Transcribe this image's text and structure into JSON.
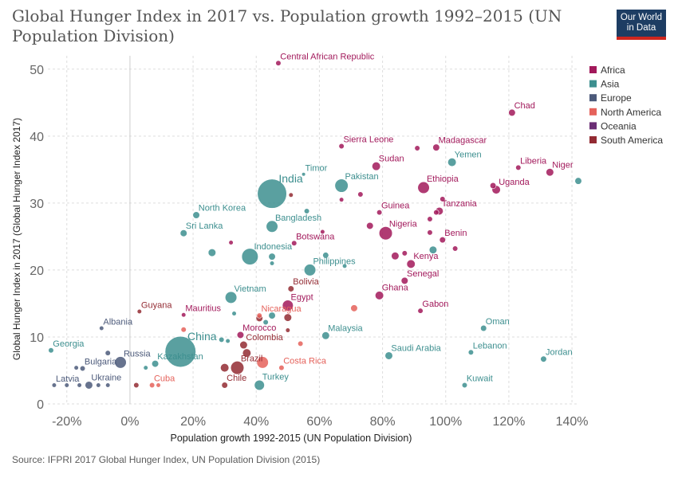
{
  "title": "Global Hunger Index in 2017 vs. Population growth 1992–2015 (UN Population Division)",
  "logo": {
    "line1": "Our World",
    "line2": "in Data"
  },
  "source": "Source: IFPRI 2017 Global Hunger Index, UN Population Division (2015)",
  "colors": {
    "Africa": "#a2195b",
    "Asia": "#3d8f8f",
    "Europe": "#4c5a7a",
    "North America": "#e5625b",
    "Oceania": "#6b2e75",
    "South America": "#932b33"
  },
  "chart_data": {
    "type": "scatter",
    "title": "Global Hunger Index in 2017 vs. Population growth 1992–2015 (UN Population Division)",
    "xlabel": "Population growth 1992-2015 (UN Population Division)",
    "ylabel": "Global Hunger Index in 2017 (Global Hunger Index 2017)",
    "xlim": [
      -0.26,
      1.42
    ],
    "ylim": [
      0,
      52
    ],
    "x_ticks": [
      {
        "value": -0.2,
        "label": "-20%"
      },
      {
        "value": 0,
        "label": "0%"
      },
      {
        "value": 0.2,
        "label": "20%"
      },
      {
        "value": 0.4,
        "label": "40%"
      },
      {
        "value": 0.6,
        "label": "60%"
      },
      {
        "value": 0.8,
        "label": "80%"
      },
      {
        "value": 1.0,
        "label": "100%"
      },
      {
        "value": 1.2,
        "label": "120%"
      },
      {
        "value": 1.4,
        "label": "140%"
      }
    ],
    "y_ticks": [
      {
        "value": 0,
        "label": "0"
      },
      {
        "value": 10,
        "label": "10"
      },
      {
        "value": 20,
        "label": "20"
      },
      {
        "value": 30,
        "label": "30"
      },
      {
        "value": 40,
        "label": "40"
      },
      {
        "value": 50,
        "label": "50"
      }
    ],
    "grid": true,
    "legend_position": "top-right",
    "legend": [
      "Africa",
      "Asia",
      "Europe",
      "North America",
      "Oceania",
      "South America"
    ],
    "points": [
      {
        "label": "Central African Republic",
        "region": "Africa",
        "x": 0.47,
        "y": 50.9,
        "size": 2
      },
      {
        "label": "Chad",
        "region": "Africa",
        "x": 1.21,
        "y": 43.5,
        "size": 3
      },
      {
        "label": "Sierra Leone",
        "region": "Africa",
        "x": 0.67,
        "y": 38.5,
        "size": 2
      },
      {
        "label": "Madagascar",
        "region": "Africa",
        "x": 0.97,
        "y": 38.3,
        "size": 3
      },
      {
        "label": "",
        "region": "Africa",
        "x": 0.91,
        "y": 38.2,
        "size": 2
      },
      {
        "label": "Sudan",
        "region": "Africa",
        "x": 0.78,
        "y": 35.5,
        "size": 4
      },
      {
        "label": "Liberia",
        "region": "Africa",
        "x": 1.23,
        "y": 35.3,
        "size": 2
      },
      {
        "label": "Niger",
        "region": "Africa",
        "x": 1.33,
        "y": 34.6,
        "size": 3.5
      },
      {
        "label": "Timor",
        "region": "Asia",
        "x": 0.55,
        "y": 34.3,
        "size": 1
      },
      {
        "label": "India",
        "region": "Asia",
        "x": 0.45,
        "y": 31.4,
        "size": 17
      },
      {
        "label": "Pakistan",
        "region": "Asia",
        "x": 0.67,
        "y": 32.6,
        "size": 7
      },
      {
        "label": "Yemen",
        "region": "Asia",
        "x": 1.02,
        "y": 36.1,
        "size": 4
      },
      {
        "label": "Ethiopia",
        "region": "Africa",
        "x": 0.93,
        "y": 32.3,
        "size": 6
      },
      {
        "label": "Uganda",
        "region": "Africa",
        "x": 1.16,
        "y": 32.0,
        "size": 4
      },
      {
        "label": "",
        "region": "Africa",
        "x": 1.15,
        "y": 32.6,
        "size": 2.5
      },
      {
        "label": "",
        "region": "Asia",
        "x": 1.42,
        "y": 33.3,
        "size": 3
      },
      {
        "label": "",
        "region": "South America",
        "x": 0.51,
        "y": 31.2,
        "size": 1.5
      },
      {
        "label": "",
        "region": "Africa",
        "x": 0.73,
        "y": 31.3,
        "size": 2
      },
      {
        "label": "",
        "region": "Africa",
        "x": 0.67,
        "y": 30.5,
        "size": 1.5
      },
      {
        "label": "",
        "region": "Africa",
        "x": 0.99,
        "y": 30.6,
        "size": 2
      },
      {
        "label": "Tanzania",
        "region": "Africa",
        "x": 0.98,
        "y": 28.8,
        "size": 3.5
      },
      {
        "label": "",
        "region": "Africa",
        "x": 0.97,
        "y": 28.6,
        "size": 2
      },
      {
        "label": "North Korea",
        "region": "Asia",
        "x": 0.21,
        "y": 28.2,
        "size": 3
      },
      {
        "label": "",
        "region": "Asia",
        "x": 0.56,
        "y": 28.8,
        "size": 2
      },
      {
        "label": "Guinea",
        "region": "Africa",
        "x": 0.79,
        "y": 28.6,
        "size": 2
      },
      {
        "label": "",
        "region": "Africa",
        "x": 0.95,
        "y": 27.6,
        "size": 2
      },
      {
        "label": "Bangladesh",
        "region": "Asia",
        "x": 0.45,
        "y": 26.5,
        "size": 6
      },
      {
        "label": "",
        "region": "Africa",
        "x": 0.76,
        "y": 26.6,
        "size": 3
      },
      {
        "label": "Nigeria",
        "region": "Africa",
        "x": 0.81,
        "y": 25.5,
        "size": 7
      },
      {
        "label": "Sri Lanka",
        "region": "Asia",
        "x": 0.17,
        "y": 25.5,
        "size": 3
      },
      {
        "label": "Botswana",
        "region": "Africa",
        "x": 0.52,
        "y": 24.0,
        "size": 2
      },
      {
        "label": "",
        "region": "Africa",
        "x": 0.61,
        "y": 25.7,
        "size": 1.5
      },
      {
        "label": "",
        "region": "Africa",
        "x": 0.32,
        "y": 24.1,
        "size": 1.5
      },
      {
        "label": "Benin",
        "region": "Africa",
        "x": 0.99,
        "y": 24.5,
        "size": 2.5
      },
      {
        "label": "",
        "region": "Africa",
        "x": 0.95,
        "y": 25.6,
        "size": 2
      },
      {
        "label": "Indonesia",
        "region": "Asia",
        "x": 0.38,
        "y": 22.0,
        "size": 9
      },
      {
        "label": "",
        "region": "Asia",
        "x": 0.26,
        "y": 22.6,
        "size": 3.5
      },
      {
        "label": "",
        "region": "Asia",
        "x": 0.45,
        "y": 22.0,
        "size": 3
      },
      {
        "label": "",
        "region": "Asia",
        "x": 0.62,
        "y": 22.2,
        "size": 2.5
      },
      {
        "label": "",
        "region": "Asia",
        "x": 0.96,
        "y": 23.0,
        "size": 3.5
      },
      {
        "label": "",
        "region": "Africa",
        "x": 1.03,
        "y": 23.2,
        "size": 2
      },
      {
        "label": "",
        "region": "Africa",
        "x": 0.87,
        "y": 22.5,
        "size": 2
      },
      {
        "label": "",
        "region": "Africa",
        "x": 0.84,
        "y": 22.1,
        "size": 3.5
      },
      {
        "label": "Kenya",
        "region": "Africa",
        "x": 0.89,
        "y": 20.9,
        "size": 4
      },
      {
        "label": "",
        "region": "Asia",
        "x": 0.45,
        "y": 21.0,
        "size": 1.5
      },
      {
        "label": "Philippines",
        "region": "Asia",
        "x": 0.57,
        "y": 20.0,
        "size": 6
      },
      {
        "label": "",
        "region": "Asia",
        "x": 0.68,
        "y": 20.6,
        "size": 1.5
      },
      {
        "label": "Senegal",
        "region": "Africa",
        "x": 0.87,
        "y": 18.4,
        "size": 3
      },
      {
        "label": "Bolivia",
        "region": "South America",
        "x": 0.51,
        "y": 17.2,
        "size": 2.5
      },
      {
        "label": "Ghana",
        "region": "Africa",
        "x": 0.79,
        "y": 16.2,
        "size": 4
      },
      {
        "label": "Vietnam",
        "region": "Asia",
        "x": 0.32,
        "y": 15.9,
        "size": 6
      },
      {
        "label": "Egypt",
        "region": "Africa",
        "x": 0.5,
        "y": 14.7,
        "size": 5.5
      },
      {
        "label": "Nicaragua",
        "region": "North America",
        "x": 0.41,
        "y": 13.2,
        "size": 2
      },
      {
        "label": "",
        "region": "North America",
        "x": 0.71,
        "y": 14.3,
        "size": 3
      },
      {
        "label": "Gabon",
        "region": "Africa",
        "x": 0.92,
        "y": 13.9,
        "size": 2
      },
      {
        "label": "Guyana",
        "region": "South America",
        "x": 0.03,
        "y": 13.8,
        "size": 1.5
      },
      {
        "label": "Mauritius",
        "region": "Africa",
        "x": 0.17,
        "y": 13.3,
        "size": 1.5
      },
      {
        "label": "",
        "region": "Asia",
        "x": 0.33,
        "y": 13.5,
        "size": 1.5
      },
      {
        "label": "",
        "region": "South America",
        "x": 0.41,
        "y": 12.8,
        "size": 3
      },
      {
        "label": "",
        "region": "South America",
        "x": 0.5,
        "y": 12.9,
        "size": 3.5
      },
      {
        "label": "",
        "region": "Asia",
        "x": 0.45,
        "y": 13.2,
        "size": 3
      },
      {
        "label": "Albania",
        "region": "Europe",
        "x": -0.09,
        "y": 11.3,
        "size": 1.5
      },
      {
        "label": "Oman",
        "region": "Asia",
        "x": 1.12,
        "y": 11.3,
        "size": 2.5
      },
      {
        "label": "",
        "region": "Asia",
        "x": 0.43,
        "y": 12.2,
        "size": 2
      },
      {
        "label": "Morocco",
        "region": "Africa",
        "x": 0.35,
        "y": 10.3,
        "size": 3
      },
      {
        "label": "",
        "region": "South America",
        "x": 0.5,
        "y": 11.0,
        "size": 1.5
      },
      {
        "label": "",
        "region": "North America",
        "x": 0.17,
        "y": 11.1,
        "size": 2
      },
      {
        "label": "Malaysia",
        "region": "Asia",
        "x": 0.62,
        "y": 10.2,
        "size": 3.5
      },
      {
        "label": "China",
        "region": "Asia",
        "x": 0.16,
        "y": 7.8,
        "size": 18
      },
      {
        "label": "Georgia",
        "region": "Asia",
        "x": -0.25,
        "y": 8.0,
        "size": 2
      },
      {
        "label": "Colombia",
        "region": "South America",
        "x": 0.36,
        "y": 8.8,
        "size": 3.5
      },
      {
        "label": "",
        "region": "North America",
        "x": 0.54,
        "y": 9.0,
        "size": 2
      },
      {
        "label": "",
        "region": "Asia",
        "x": 0.29,
        "y": 9.6,
        "size": 2
      },
      {
        "label": "",
        "region": "Asia",
        "x": 0.31,
        "y": 9.4,
        "size": 1.5
      },
      {
        "label": "Lebanon",
        "region": "Asia",
        "x": 1.08,
        "y": 7.7,
        "size": 2
      },
      {
        "label": "Saudi Arabia",
        "region": "Asia",
        "x": 0.82,
        "y": 7.2,
        "size": 3.5
      },
      {
        "label": "Jordan",
        "region": "Asia",
        "x": 1.31,
        "y": 6.7,
        "size": 2.5
      },
      {
        "label": "Russia",
        "region": "Europe",
        "x": -0.03,
        "y": 6.2,
        "size": 6
      },
      {
        "label": "",
        "region": "Europe",
        "x": -0.07,
        "y": 7.6,
        "size": 2
      },
      {
        "label": "Kazakhstan",
        "region": "Asia",
        "x": 0.08,
        "y": 6.0,
        "size": 3
      },
      {
        "label": "Brazil",
        "region": "South America",
        "x": 0.34,
        "y": 5.4,
        "size": 7
      },
      {
        "label": "",
        "region": "South America",
        "x": 0.37,
        "y": 7.6,
        "size": 4
      },
      {
        "label": "",
        "region": "North America",
        "x": 0.42,
        "y": 6.2,
        "size": 6
      },
      {
        "label": "",
        "region": "South America",
        "x": 0.3,
        "y": 5.4,
        "size": 4
      },
      {
        "label": "Costa Rica",
        "region": "North America",
        "x": 0.48,
        "y": 5.4,
        "size": 2
      },
      {
        "label": "Bulgaria",
        "region": "Europe",
        "x": -0.15,
        "y": 5.3,
        "size": 2
      },
      {
        "label": "",
        "region": "Europe",
        "x": -0.17,
        "y": 5.4,
        "size": 1.5
      },
      {
        "label": "",
        "region": "Asia",
        "x": 0.05,
        "y": 5.4,
        "size": 1.5
      },
      {
        "label": "Cuba",
        "region": "North America",
        "x": 0.07,
        "y": 2.8,
        "size": 2
      },
      {
        "label": "",
        "region": "North America",
        "x": 0.09,
        "y": 2.8,
        "size": 1.5
      },
      {
        "label": "Chile",
        "region": "South America",
        "x": 0.3,
        "y": 2.8,
        "size": 2.5
      },
      {
        "label": "Turkey",
        "region": "Asia",
        "x": 0.41,
        "y": 2.8,
        "size": 5
      },
      {
        "label": "Kuwait",
        "region": "Asia",
        "x": 1.06,
        "y": 2.8,
        "size": 2
      },
      {
        "label": "Latvia",
        "region": "Europe",
        "x": -0.24,
        "y": 2.8,
        "size": 1.5
      },
      {
        "label": "",
        "region": "Europe",
        "x": -0.2,
        "y": 2.8,
        "size": 1.5
      },
      {
        "label": "",
        "region": "Europe",
        "x": -0.16,
        "y": 2.8,
        "size": 1.5
      },
      {
        "label": "Ukraine",
        "region": "Europe",
        "x": -0.13,
        "y": 2.8,
        "size": 3.5
      },
      {
        "label": "",
        "region": "Europe",
        "x": -0.1,
        "y": 2.8,
        "size": 1.5
      },
      {
        "label": "",
        "region": "Europe",
        "x": -0.07,
        "y": 2.8,
        "size": 1.5
      },
      {
        "label": "",
        "region": "South America",
        "x": 0.02,
        "y": 2.8,
        "size": 2
      }
    ]
  }
}
